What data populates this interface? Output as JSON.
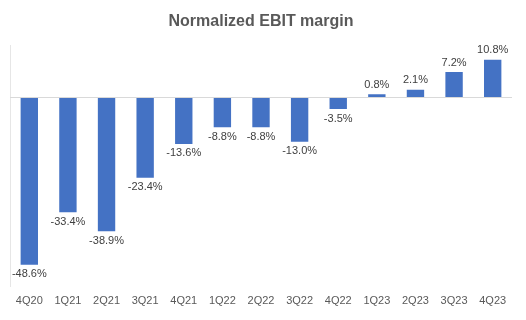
{
  "chart_data": {
    "type": "bar",
    "title": "Normalized EBIT margin",
    "categories": [
      "4Q20",
      "1Q21",
      "2Q21",
      "3Q21",
      "4Q21",
      "1Q22",
      "2Q22",
      "3Q22",
      "4Q22",
      "1Q23",
      "2Q23",
      "3Q23",
      "4Q23"
    ],
    "values": [
      -48.6,
      -33.4,
      -38.9,
      -23.4,
      -13.6,
      -8.8,
      -8.8,
      -13.0,
      -3.5,
      0.8,
      2.1,
      7.2,
      10.8
    ],
    "value_labels": [
      "-48.6%",
      "-33.4%",
      "-38.9%",
      "-23.4%",
      "-13.6%",
      "-8.8%",
      "-8.8%",
      "-13.0%",
      "-3.5%",
      "0.8%",
      "2.1%",
      "7.2%",
      "10.8%"
    ],
    "color": "#4472c4",
    "ylim": [
      -55,
      15
    ],
    "grid": false,
    "data_labels": true,
    "tick_labels": "x"
  }
}
